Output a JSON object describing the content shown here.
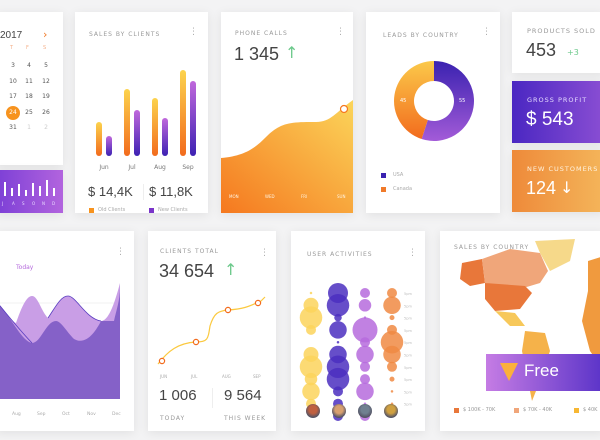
{
  "calendar": {
    "year": "2017",
    "next_icon": "chevron-right-icon",
    "weekdays": [
      "T",
      "F",
      "S"
    ],
    "rows": [
      [
        "3",
        "4",
        "5"
      ],
      [
        "10",
        "11",
        "12"
      ],
      [
        "17",
        "18",
        "19"
      ],
      [
        "24",
        "25",
        "26"
      ],
      [
        "31",
        "1",
        "2"
      ]
    ],
    "selected": "24",
    "bar_labels": [
      "J",
      "A",
      "S",
      "O",
      "N",
      "D"
    ]
  },
  "sales_clients": {
    "title": "SALES BY CLIENTS",
    "months": [
      "Jun",
      "Jul",
      "Aug",
      "Sep"
    ],
    "old": [
      34,
      67,
      58,
      86
    ],
    "new": [
      20,
      46,
      38,
      75
    ],
    "old_total": "$ 14,4K",
    "new_total": "$ 11,8K",
    "old_label": "Old Clients",
    "new_label": "New Clients"
  },
  "phone_calls": {
    "title": "PHONE CALLS",
    "value": "1 345",
    "days": [
      "MON",
      "WED",
      "FRI",
      "SUN"
    ]
  },
  "leads": {
    "title": "LEADS BY COUNTRY",
    "usa": 55,
    "canada": 45,
    "usa_label": "USA",
    "canada_label": "Canada",
    "usa_text": "55",
    "canada_text": "45"
  },
  "products": {
    "title": "PRODUCTS SOLD",
    "value": "453",
    "delta": "+3"
  },
  "gross": {
    "title": "GROSS PROFIT",
    "value": "$ 543"
  },
  "customers": {
    "title": "NEW CUSTOMERS",
    "value": "124"
  },
  "area": {
    "legend": "Today",
    "months": [
      "Aug",
      "Sep",
      "Oct",
      "Nov",
      "Dec"
    ]
  },
  "clients_total": {
    "title": "CLIENTS TOTAL",
    "value": "34 654",
    "months": [
      "JUN",
      "JUL",
      "AUG",
      "SEP"
    ],
    "today": "1 006",
    "today_label": "TODAY",
    "week": "9 564",
    "week_label": "THIS WEEK"
  },
  "activities": {
    "title": "USER ACTIVITIES",
    "row_label": "5pm",
    "columns": [
      [
        1,
        6,
        9,
        4,
        0,
        6,
        9,
        5,
        7,
        4,
        1
      ],
      [
        8,
        9,
        3,
        7,
        1,
        7,
        9,
        9,
        4,
        4,
        4
      ],
      [
        4,
        5,
        1,
        10,
        4,
        7,
        4,
        4,
        7,
        1,
        4
      ],
      [
        4,
        7,
        2,
        4,
        9,
        7,
        4,
        2,
        1,
        1,
        1
      ]
    ],
    "colors": [
      "#fcd45c",
      "#4b2fc0",
      "#b66bdd",
      "#f08a43"
    ]
  },
  "map": {
    "title": "SALES BY COUNTRY",
    "legend": [
      "$ 100K - 70K",
      "$ 70K - 40K",
      "$ 40K"
    ],
    "banner": "Free"
  }
}
